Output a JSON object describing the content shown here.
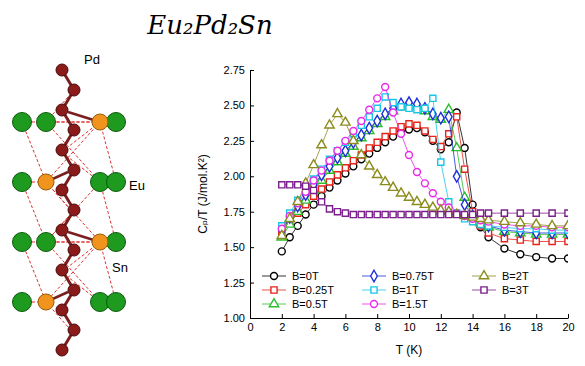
{
  "header": {
    "title": "Eu₂Pd₂Sn"
  },
  "diagram": {
    "labels": {
      "pd": "Pd",
      "eu": "Eu",
      "sn": "Sn"
    }
  },
  "chart_data": {
    "type": "line",
    "x_label": "T (K)",
    "y_label": "Cₚ/T (J/mol.K²)",
    "xlim": [
      0,
      20
    ],
    "xticks": [
      0,
      2,
      4,
      6,
      8,
      10,
      12,
      14,
      16,
      18,
      20
    ],
    "ylim": [
      1,
      2.75
    ],
    "yticks": [
      {
        "value": 1,
        "label": "1.00"
      },
      1.25,
      {
        "value": 1.5,
        "label": "1.50"
      },
      1.75,
      {
        "value": 2,
        "label": "2.00"
      },
      2.25,
      {
        "value": 2.5,
        "label": "2.50"
      },
      2.75
    ],
    "legend": "bottom",
    "x": [
      2,
      2.5,
      3,
      3.5,
      4,
      4.5,
      5,
      5.5,
      6,
      6.5,
      7,
      7.5,
      8,
      8.5,
      9,
      9.5,
      10,
      10.5,
      11,
      11.5,
      12,
      12.5,
      13,
      13.5,
      14,
      14.5,
      15,
      16,
      17,
      18,
      19,
      20
    ],
    "series": [
      {
        "name": "B=0T",
        "color": "#000000",
        "marker": "circle",
        "values": [
          1.47,
          1.57,
          1.65,
          1.73,
          1.8,
          1.86,
          1.92,
          1.97,
          2.02,
          2.07,
          2.12,
          2.16,
          2.2,
          2.24,
          2.28,
          2.31,
          2.33,
          2.34,
          2.31,
          2.25,
          2.19,
          2.24,
          2.45,
          2.2,
          1.8,
          1.64,
          1.57,
          1.49,
          1.45,
          1.43,
          1.42,
          1.42
        ]
      },
      {
        "name": "B=0.25T",
        "color": "#e8231a",
        "marker": "square",
        "values": [
          1.6,
          1.67,
          1.74,
          1.8,
          1.86,
          1.91,
          1.96,
          2.01,
          2.06,
          2.11,
          2.15,
          2.2,
          2.24,
          2.28,
          2.32,
          2.35,
          2.37,
          2.36,
          2.32,
          2.26,
          2.21,
          2.3,
          2.42,
          2.05,
          1.75,
          1.65,
          1.6,
          1.56,
          1.55,
          1.54,
          1.54,
          1.54
        ]
      },
      {
        "name": "B=0.5T",
        "color": "#2cbd2c",
        "marker": "triangle",
        "values": [
          1.57,
          1.66,
          1.75,
          1.83,
          1.9,
          1.97,
          2.04,
          2.1,
          2.16,
          2.21,
          2.27,
          2.32,
          2.37,
          2.42,
          2.46,
          2.49,
          2.5,
          2.49,
          2.46,
          2.42,
          2.4,
          2.47,
          2.2,
          1.85,
          1.72,
          1.67,
          1.64,
          1.61,
          1.6,
          1.59,
          1.59,
          1.59
        ]
      },
      {
        "name": "B=0.75T",
        "color": "#1f2fd8",
        "marker": "diamond",
        "values": [
          1.62,
          1.71,
          1.79,
          1.87,
          1.94,
          2.01,
          2.07,
          2.13,
          2.18,
          2.24,
          2.29,
          2.34,
          2.39,
          2.44,
          2.48,
          2.51,
          2.52,
          2.51,
          2.48,
          2.44,
          2.41,
          2.42,
          2.0,
          1.8,
          1.72,
          1.68,
          1.65,
          1.62,
          1.61,
          1.6,
          1.6,
          1.6
        ]
      },
      {
        "name": "B=1T",
        "color": "#19c6e8",
        "marker": "square",
        "values": [
          1.65,
          1.74,
          1.83,
          1.91,
          1.98,
          2.05,
          2.12,
          2.18,
          2.24,
          2.3,
          2.36,
          2.42,
          2.48,
          2.56,
          2.52,
          2.49,
          2.48,
          2.47,
          2.48,
          2.55,
          2.1,
          1.82,
          1.74,
          1.7,
          1.68,
          1.66,
          1.65,
          1.64,
          1.63,
          1.63,
          1.62,
          1.62
        ]
      },
      {
        "name": "B=1.5T",
        "color": "#e829e8",
        "marker": "circle",
        "values": [
          1.63,
          1.72,
          1.81,
          1.89,
          1.97,
          2.04,
          2.11,
          2.18,
          2.25,
          2.32,
          2.39,
          2.47,
          2.55,
          2.63,
          2.45,
          2.3,
          2.15,
          2.03,
          1.95,
          1.88,
          1.82,
          1.78,
          1.74,
          1.72,
          1.7,
          1.69,
          1.68,
          1.66,
          1.65,
          1.65,
          1.64,
          1.64
        ]
      },
      {
        "name": "B=2T",
        "color": "#8c8c1e",
        "marker": "triangle",
        "values": [
          1.58,
          1.7,
          1.82,
          1.95,
          2.08,
          2.22,
          2.36,
          2.44,
          2.38,
          2.25,
          2.15,
          2.07,
          2.01,
          1.96,
          1.92,
          1.88,
          1.85,
          1.82,
          1.8,
          1.78,
          1.76,
          1.75,
          1.73,
          1.72,
          1.71,
          1.7,
          1.69,
          1.68,
          1.67,
          1.66,
          1.65,
          1.65
        ]
      },
      {
        "name": "B=3T",
        "color": "#7b1f8c",
        "marker": "square",
        "values": [
          1.94,
          1.94,
          1.94,
          1.93,
          1.9,
          1.82,
          1.77,
          1.75,
          1.74,
          1.73,
          1.73,
          1.73,
          1.73,
          1.73,
          1.73,
          1.73,
          1.73,
          1.73,
          1.73,
          1.73,
          1.73,
          1.73,
          1.73,
          1.73,
          1.73,
          1.74,
          1.74,
          1.74,
          1.74,
          1.74,
          1.74,
          1.74
        ]
      }
    ]
  }
}
